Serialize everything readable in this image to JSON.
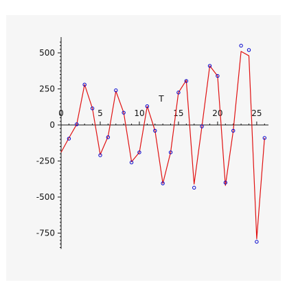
{
  "chart_data": {
    "type": "line",
    "title": "",
    "xlabel": "T",
    "ylabel": "",
    "xlim": [
      0,
      26.5
    ],
    "ylim": [
      -850,
      600
    ],
    "x_ticks": [
      0,
      5,
      10,
      15,
      20,
      25
    ],
    "x_tick_labels": [
      "0",
      "5",
      "10",
      "15",
      "20",
      "25"
    ],
    "y_ticks": [
      500,
      250,
      0,
      -250,
      -500,
      -750
    ],
    "y_tick_labels": [
      "500",
      "250",
      "0",
      "-250",
      "-500",
      "-750"
    ],
    "grid": false,
    "legend": "none",
    "colors": {
      "line": "#e01010",
      "points": "#0000cc",
      "axis": "#111111",
      "background": "#f6f6f6"
    },
    "series": [
      {
        "kind": "fitted-curve",
        "x": [
          0,
          1,
          2,
          3,
          4,
          5,
          6,
          7,
          8,
          9,
          10,
          11,
          12,
          13,
          14,
          15,
          16,
          17,
          18,
          19,
          20,
          21,
          22,
          23,
          24,
          25,
          26
        ],
        "y": [
          -190,
          -90,
          5,
          280,
          115,
          -205,
          -80,
          235,
          85,
          -255,
          -190,
          130,
          -40,
          -405,
          -190,
          225,
          310,
          -410,
          -10,
          410,
          340,
          -420,
          -40,
          510,
          480,
          -790,
          -90
        ]
      },
      {
        "kind": "observed-points",
        "x": [
          1,
          2,
          3,
          4,
          5,
          6,
          7,
          8,
          9,
          10,
          11,
          12,
          13,
          14,
          15,
          16,
          17,
          18,
          19,
          20,
          21,
          22,
          23,
          24,
          25,
          26
        ],
        "y": [
          -95,
          5,
          280,
          115,
          -210,
          -85,
          240,
          85,
          -260,
          -190,
          130,
          -40,
          -405,
          -190,
          225,
          305,
          -435,
          -10,
          410,
          340,
          -400,
          -40,
          550,
          520,
          -810,
          -90
        ]
      }
    ]
  }
}
